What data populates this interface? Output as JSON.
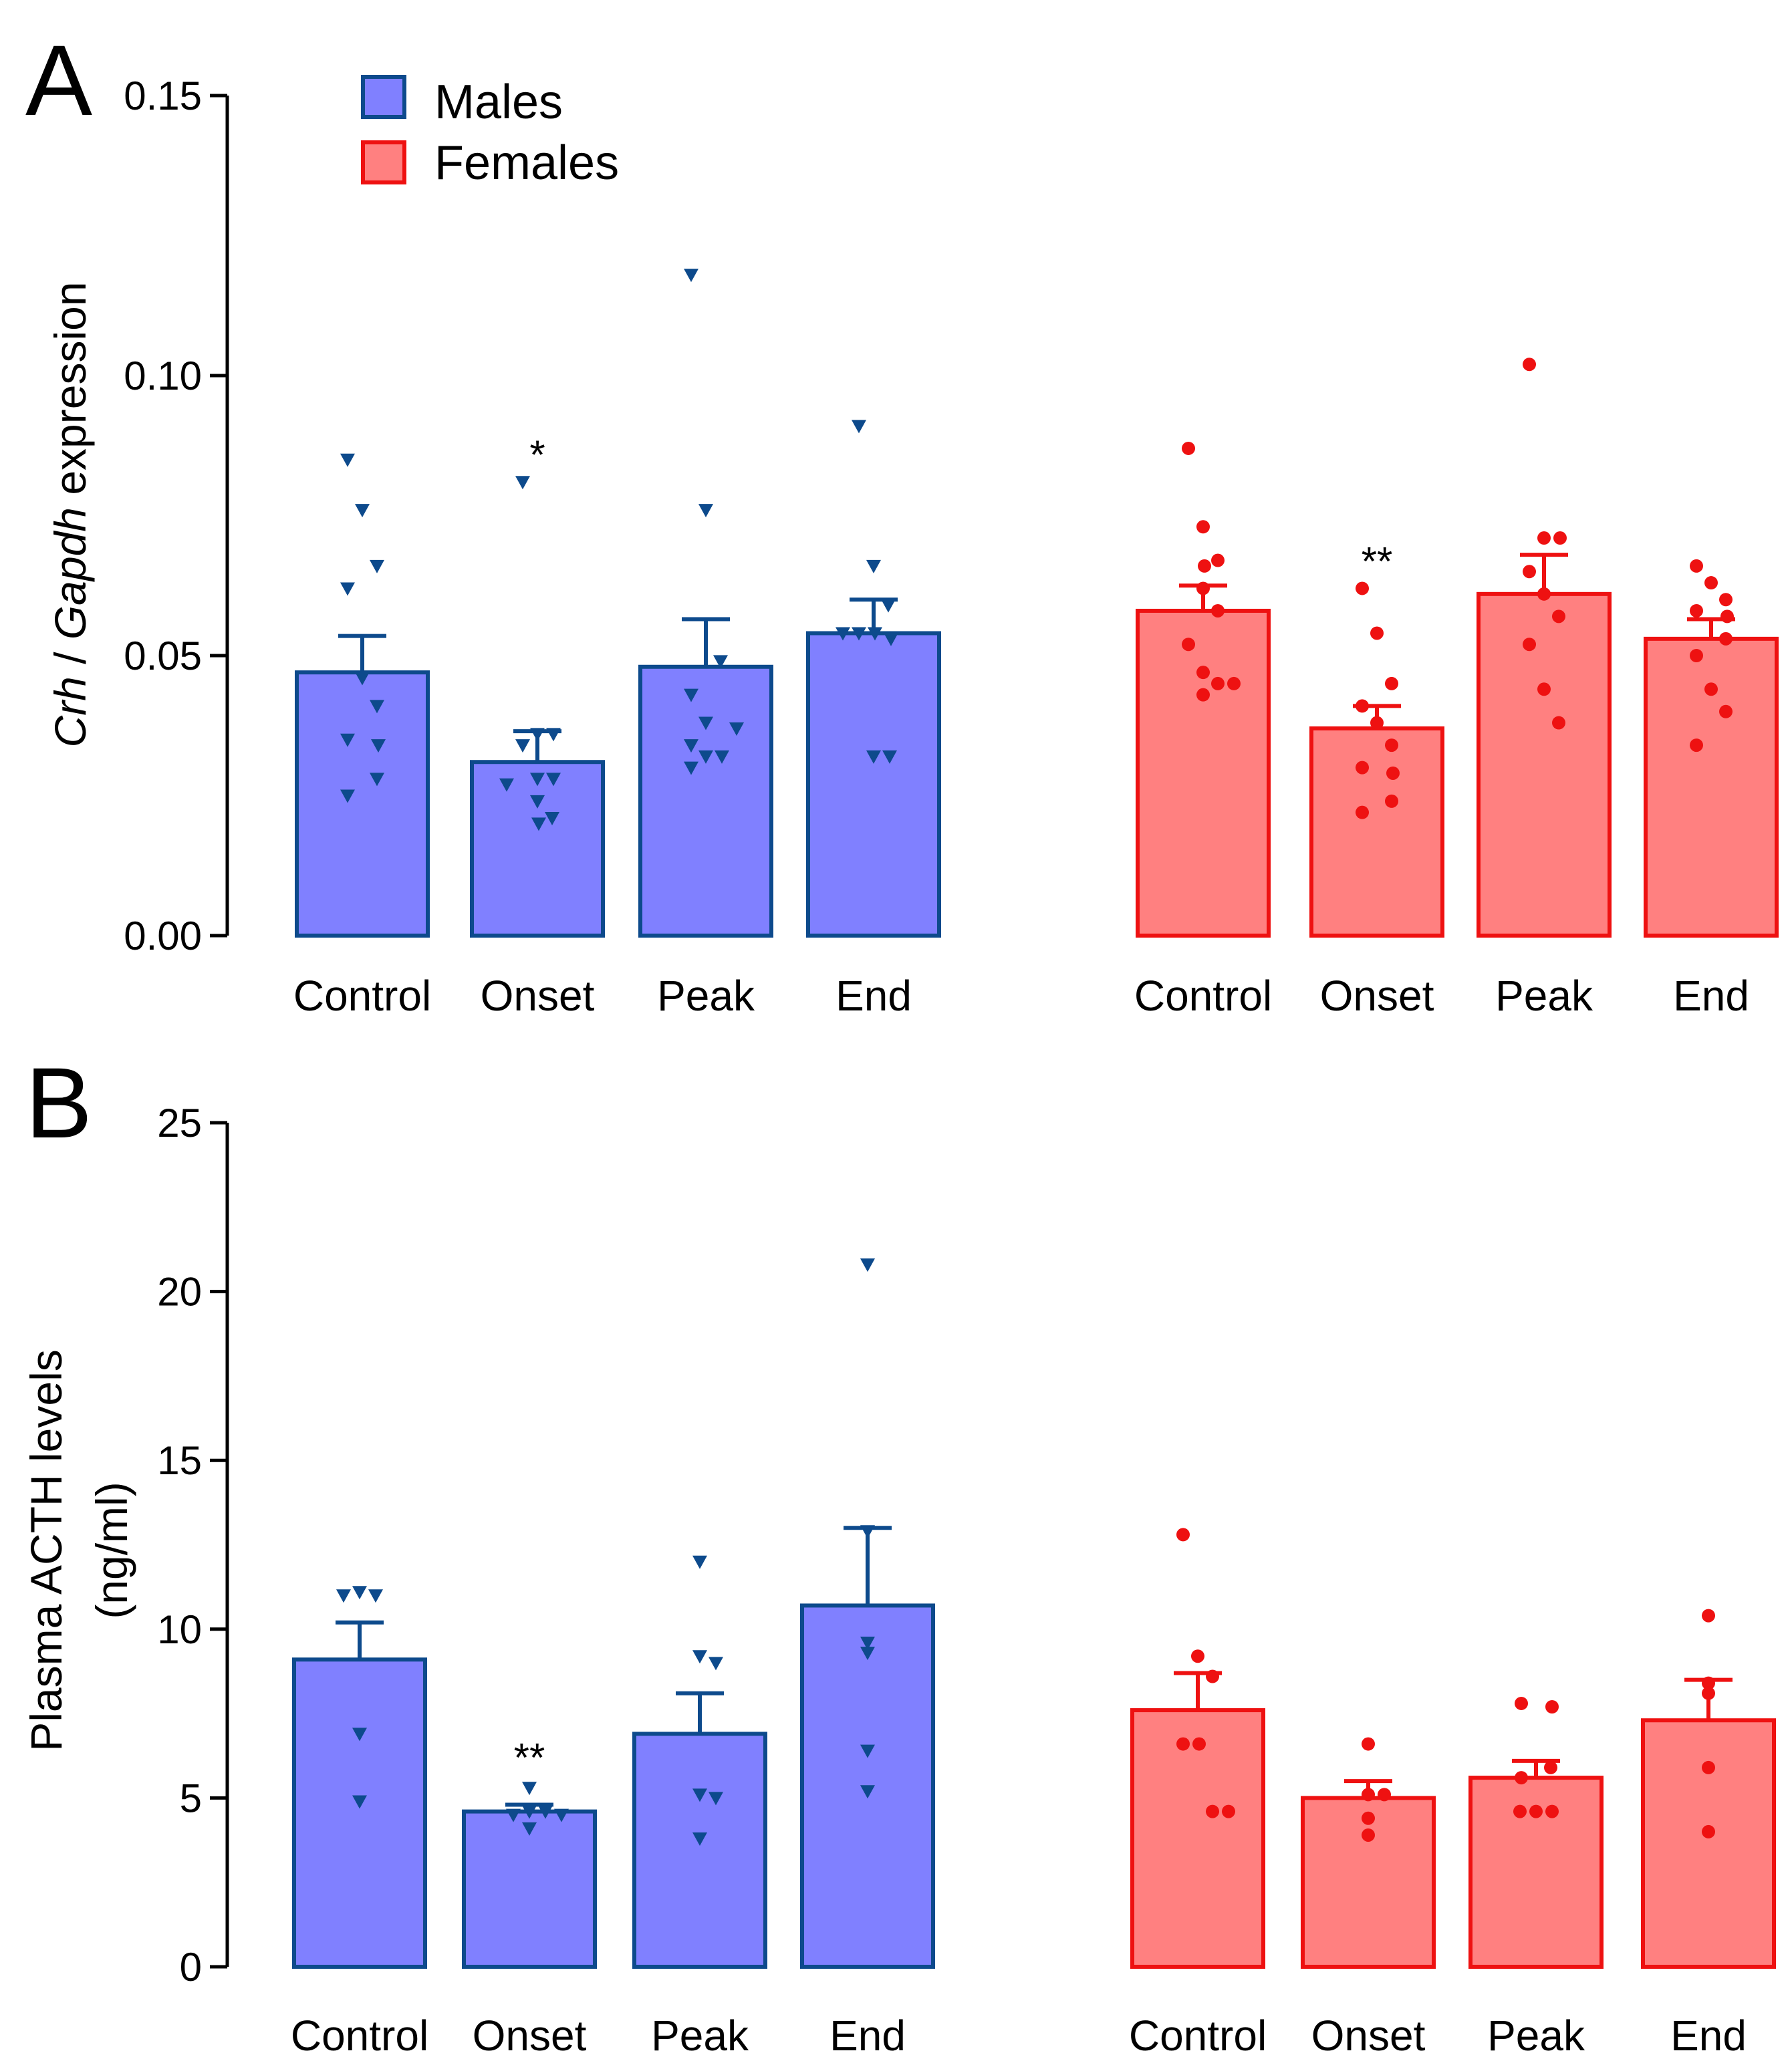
{
  "colors": {
    "males_fill": "#8080ff",
    "males_stroke": "#0d4a8c",
    "males_points": "#0d4a8c",
    "females_fill": "#ff8080",
    "females_stroke": "#ee1111",
    "females_points": "#ee1111",
    "axis": "#000000"
  },
  "legend": {
    "males": "Males",
    "females": "Females"
  },
  "chart_data": [
    {
      "panel": "A",
      "type": "bar",
      "ylabel_italic_1": "Crh",
      "ylabel_sep": " / ",
      "ylabel_italic_2": "Gapdh",
      "ylabel_rest": " expression",
      "ylim": [
        0,
        0.15
      ],
      "yticks": [
        "0.00",
        "0.05",
        "0.10",
        "0.15"
      ],
      "ytick_values": [
        0,
        0.05,
        0.1,
        0.15
      ],
      "categories": [
        "Control",
        "Onset",
        "Peak",
        "End"
      ],
      "series": [
        {
          "name": "Males",
          "marker": "triangle-down",
          "values": [
            0.047,
            0.031,
            0.048,
            0.054
          ],
          "sem": [
            0.0065,
            0.0055,
            0.0085,
            0.006
          ],
          "significance": [
            "",
            "*",
            "",
            ""
          ],
          "points": [
            [
              0.085,
              0.076,
              0.066,
              0.062,
              0.046,
              0.041,
              0.035,
              0.034,
              0.028,
              0.025
            ],
            [
              0.081,
              0.036,
              0.036,
              0.034,
              0.028,
              0.028,
              0.027,
              0.024,
              0.021,
              0.02
            ],
            [
              0.118,
              0.076,
              0.049,
              0.043,
              0.038,
              0.037,
              0.034,
              0.032,
              0.032,
              0.03
            ],
            [
              0.091,
              0.066,
              0.059,
              0.054,
              0.054,
              0.054,
              0.053,
              0.032,
              0.032
            ]
          ]
        },
        {
          "name": "Females",
          "marker": "circle",
          "values": [
            0.058,
            0.037,
            0.061,
            0.053
          ],
          "sem": [
            0.0045,
            0.004,
            0.007,
            0.0035
          ],
          "significance": [
            "",
            "**",
            "",
            ""
          ],
          "points": [
            [
              0.087,
              0.073,
              0.067,
              0.066,
              0.062,
              0.058,
              0.052,
              0.047,
              0.045,
              0.045,
              0.043
            ],
            [
              0.062,
              0.054,
              0.045,
              0.041,
              0.038,
              0.034,
              0.03,
              0.029,
              0.024,
              0.022
            ],
            [
              0.102,
              0.071,
              0.071,
              0.065,
              0.061,
              0.057,
              0.052,
              0.044,
              0.038
            ],
            [
              0.066,
              0.063,
              0.06,
              0.058,
              0.057,
              0.053,
              0.05,
              0.044,
              0.04,
              0.034
            ]
          ]
        }
      ]
    },
    {
      "panel": "B",
      "type": "bar",
      "ylabel_line1": "Plasma ACTH levels",
      "ylabel_line2": "(ng/ml)",
      "ylim": [
        0,
        25
      ],
      "yticks": [
        "0",
        "5",
        "10",
        "15",
        "20",
        "25"
      ],
      "ytick_values": [
        0,
        5,
        10,
        15,
        20,
        25
      ],
      "categories": [
        "Control",
        "Onset",
        "Peak",
        "End"
      ],
      "series": [
        {
          "name": "Males",
          "marker": "triangle-down",
          "values": [
            9.1,
            4.6,
            6.9,
            10.7
          ],
          "sem": [
            1.1,
            0.2,
            1.2,
            2.3
          ],
          "significance": [
            "",
            "**",
            "",
            ""
          ],
          "points": [
            [
              11.1,
              11.0,
              11.0,
              6.9,
              4.9
            ],
            [
              5.3,
              4.6,
              4.6,
              4.5,
              4.5,
              4.1
            ],
            [
              12.0,
              9.2,
              9.0,
              5.1,
              5.0,
              3.8
            ],
            [
              20.8,
              12.9,
              9.6,
              9.3,
              6.4,
              5.2
            ]
          ]
        },
        {
          "name": "Females",
          "marker": "circle",
          "values": [
            7.6,
            5.0,
            5.6,
            7.3
          ],
          "sem": [
            1.1,
            0.5,
            0.5,
            1.2
          ],
          "significance": [
            "",
            "",
            "",
            ""
          ],
          "points": [
            [
              12.8,
              9.2,
              8.6,
              6.6,
              6.6,
              4.6,
              4.6
            ],
            [
              6.6,
              5.1,
              5.1,
              4.4,
              3.9
            ],
            [
              7.8,
              7.7,
              5.9,
              5.6,
              4.6,
              4.6,
              4.6
            ],
            [
              10.4,
              8.4,
              8.1,
              5.9,
              4.0
            ]
          ]
        }
      ]
    }
  ]
}
